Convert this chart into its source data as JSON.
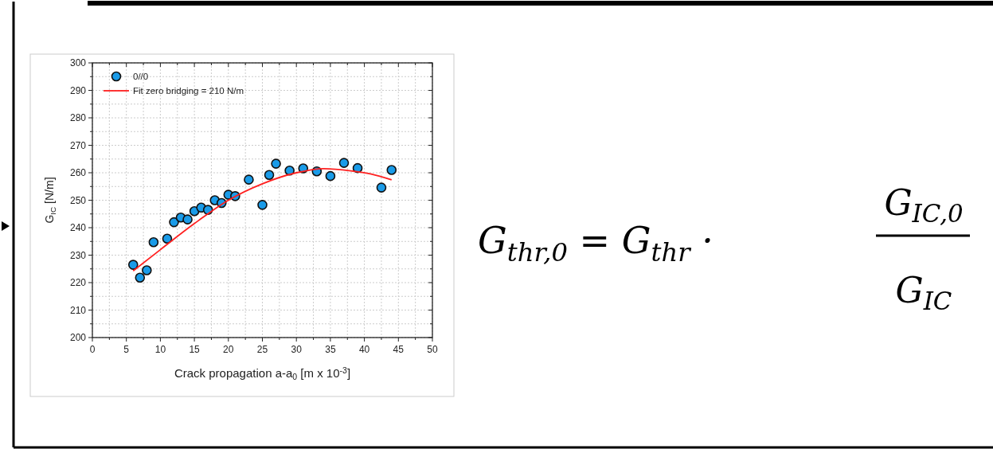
{
  "chart_data": {
    "type": "scatter",
    "xlabel": "Crack propagation a-a$_{0}$ [m x 10$^{-3}$]",
    "ylabel": "G$_{IC}$ [N/m]",
    "xlim": [
      0,
      50
    ],
    "ylim": [
      200,
      300
    ],
    "xticks": [
      0,
      {
        "value": 2.5,
        "label": null
      },
      5,
      {
        "value": 7.5,
        "label": null
      },
      10,
      {
        "value": 12.5,
        "label": null
      },
      15,
      {
        "value": 17.5,
        "label": null
      },
      20,
      {
        "value": 22.5,
        "label": null
      },
      25,
      {
        "value": 27.5,
        "label": null
      },
      30,
      {
        "value": 32.5,
        "label": null
      },
      35,
      {
        "value": 37.5,
        "label": null
      },
      40,
      {
        "value": 42.5,
        "label": null
      },
      45,
      {
        "value": 47.5,
        "label": null
      },
      50
    ],
    "yticks": [
      200,
      {
        "value": 205,
        "label": null
      },
      210,
      {
        "value": 215,
        "label": null
      },
      220,
      {
        "value": 225,
        "label": null
      },
      230,
      {
        "value": 235,
        "label": null
      },
      240,
      {
        "value": 245,
        "label": null
      },
      250,
      {
        "value": 255,
        "label": null
      },
      260,
      {
        "value": 265,
        "label": null
      },
      270,
      {
        "value": 275,
        "label": null
      },
      280,
      {
        "value": 285,
        "label": null
      },
      290,
      {
        "value": 295,
        "label": null
      },
      300
    ],
    "grid": true,
    "legend": "top left",
    "series": [
      {
        "name": "0//0",
        "marker": "circle",
        "color": "#1a9be8",
        "x": [
          6,
          7,
          8,
          9,
          11,
          12,
          13,
          14,
          15,
          16,
          17,
          18,
          19,
          20,
          21,
          23,
          25,
          26,
          27,
          29,
          31,
          33,
          35,
          37,
          39,
          42.5,
          44
        ],
        "values": [
          226.5,
          221.8,
          224.5,
          234.7,
          236,
          242,
          243.7,
          243,
          246,
          247.3,
          246.5,
          250,
          249,
          252,
          251.5,
          257.5,
          248.3,
          259.2,
          263.3,
          260.8,
          261.6,
          260.5,
          258.8,
          263.6,
          261.7,
          254.6,
          261
        ]
      },
      {
        "name": "Fit zero bridging = 210 N/m",
        "type": "line",
        "color": "#ff2020",
        "x": [
          6,
          10,
          15,
          20,
          25,
          30,
          34,
          38,
          41,
          44
        ],
        "values": [
          224.3,
          232,
          241.5,
          250,
          256,
          260,
          261.5,
          260.7,
          259.5,
          257.4
        ]
      }
    ],
    "annotations": [
      "G$_{thr,0}$ = G$_{thr}$ ·",
      "G$_{IC,0}$",
      "G$_{IC}$"
    ]
  }
}
